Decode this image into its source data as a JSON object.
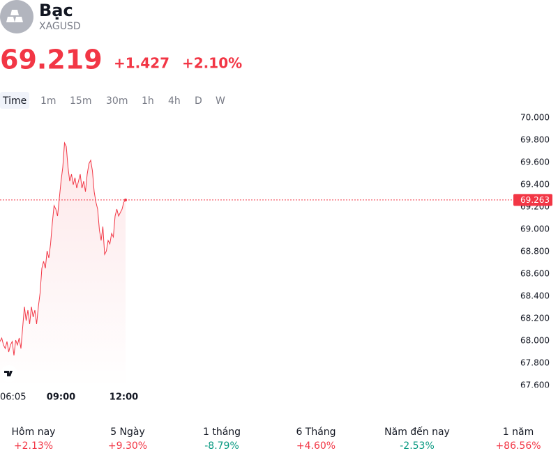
{
  "header": {
    "title": "Bạc",
    "symbol": "XAGUSD",
    "price": "69.219",
    "change": "+1.427",
    "change_percent": "+2.10%"
  },
  "tabs": [
    "Time",
    "1m",
    "15m",
    "30m",
    "1h",
    "4h",
    "D",
    "W"
  ],
  "chart_data": {
    "type": "line",
    "color": "#f23645",
    "categories": [
      "06:05",
      null,
      null,
      null,
      null,
      null,
      null,
      null,
      null,
      null,
      null,
      null,
      null,
      null,
      null,
      null,
      null,
      null,
      null,
      null,
      null,
      null,
      null,
      null,
      null,
      null,
      null,
      null,
      null,
      null,
      null,
      null,
      null,
      null,
      null,
      "09:00",
      null,
      null,
      null,
      null,
      null,
      null,
      null,
      null,
      null,
      null,
      null,
      null,
      null,
      null,
      null,
      null,
      null,
      null,
      null,
      null,
      null,
      null,
      null,
      null,
      null,
      null,
      null,
      null,
      null,
      null,
      null,
      null,
      null,
      null,
      null,
      "12:00",
      null
    ],
    "values": [
      67.994,
      68.025,
      67.963,
      67.931,
      67.994,
      67.9,
      67.963,
      67.994,
      67.869,
      68.006,
      67.963,
      68.025,
      67.931,
      68.119,
      68.306,
      68.181,
      68.275,
      68.15,
      68.306,
      68.213,
      68.275,
      68.15,
      68.306,
      68.431,
      68.65,
      68.713,
      68.65,
      68.806,
      68.744,
      68.869,
      69.056,
      69.213,
      69.181,
      69.119,
      69.275,
      69.431,
      69.556,
      69.775,
      69.744,
      69.556,
      69.431,
      69.494,
      69.4,
      69.463,
      69.369,
      69.431,
      69.494,
      69.369,
      69.431,
      69.338,
      69.494,
      69.588,
      69.619,
      69.525,
      69.338,
      69.244,
      69.181,
      68.994,
      68.9,
      69.025,
      68.775,
      68.806,
      68.9,
      68.869,
      68.963,
      68.931,
      69.119,
      69.181,
      69.119,
      69.15,
      69.181,
      69.244,
      69.263
    ],
    "ylim": [
      67.58,
      70.09
    ],
    "yticks": [
      {
        "value": 67.6,
        "label": "67.600"
      },
      {
        "value": 67.8,
        "label": "67.800"
      },
      {
        "value": 68.0,
        "label": "68.000"
      },
      {
        "value": 68.2,
        "label": "68.200"
      },
      {
        "value": 68.4,
        "label": "68.400"
      },
      {
        "value": 68.6,
        "label": "68.600"
      },
      {
        "value": 68.8,
        "label": "68.800"
      },
      {
        "value": 69.0,
        "label": "69.000"
      },
      {
        "value": 69.2,
        "label": "69.200"
      },
      {
        "value": 69.4,
        "label": "69.400"
      },
      {
        "value": 69.6,
        "label": "69.600"
      },
      {
        "value": 69.8,
        "label": "69.800"
      },
      {
        "value": 70.0,
        "label": "70.000"
      }
    ],
    "current_price": {
      "value": 69.263,
      "label": "69.263"
    },
    "grid": false
  },
  "performance": [
    {
      "label": "Hôm nay",
      "value": "+2.13%"
    },
    {
      "label": "5 Ngày",
      "value": "+9.30%"
    },
    {
      "label": "1 tháng",
      "value": "-8.79%"
    },
    {
      "label": "6 Tháng",
      "value": "+4.60%"
    },
    {
      "label": "Năm đến nay",
      "value": "-2.53%"
    },
    {
      "label": "1 năm",
      "value": "+86.56%"
    }
  ]
}
